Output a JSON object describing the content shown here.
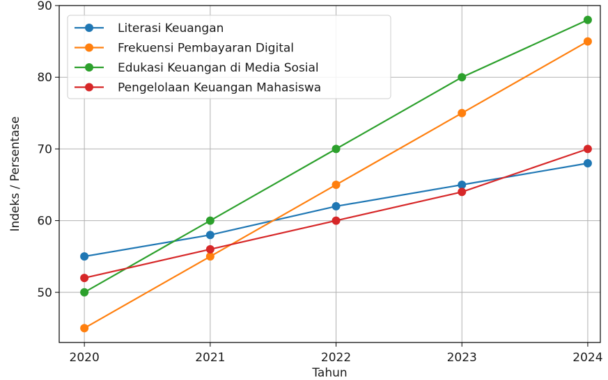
{
  "chart_data": {
    "type": "line",
    "title": "",
    "xlabel": "Tahun",
    "ylabel": "Indeks / Persentase",
    "x": [
      "2020",
      "2021",
      "2022",
      "2023",
      "2024"
    ],
    "xlim": [
      2019.8,
      2024.1
    ],
    "ylim": [
      43,
      90
    ],
    "yticks": [
      50,
      60,
      70,
      80,
      90
    ],
    "grid": true,
    "legend_position": "top-left",
    "series": [
      {
        "name": "Literasi Keuangan",
        "color": "#1f77b4",
        "values": [
          55,
          58,
          62,
          65,
          68
        ]
      },
      {
        "name": "Frekuensi Pembayaran Digital",
        "color": "#ff7f0e",
        "values": [
          45,
          55,
          65,
          75,
          85
        ]
      },
      {
        "name": "Edukasi Keuangan di Media Sosial",
        "color": "#2ca02c",
        "values": [
          50,
          60,
          70,
          80,
          88
        ]
      },
      {
        "name": "Pengelolaan Keuangan Mahasiswa",
        "color": "#d62728",
        "values": [
          52,
          56,
          60,
          64,
          70
        ]
      }
    ]
  }
}
